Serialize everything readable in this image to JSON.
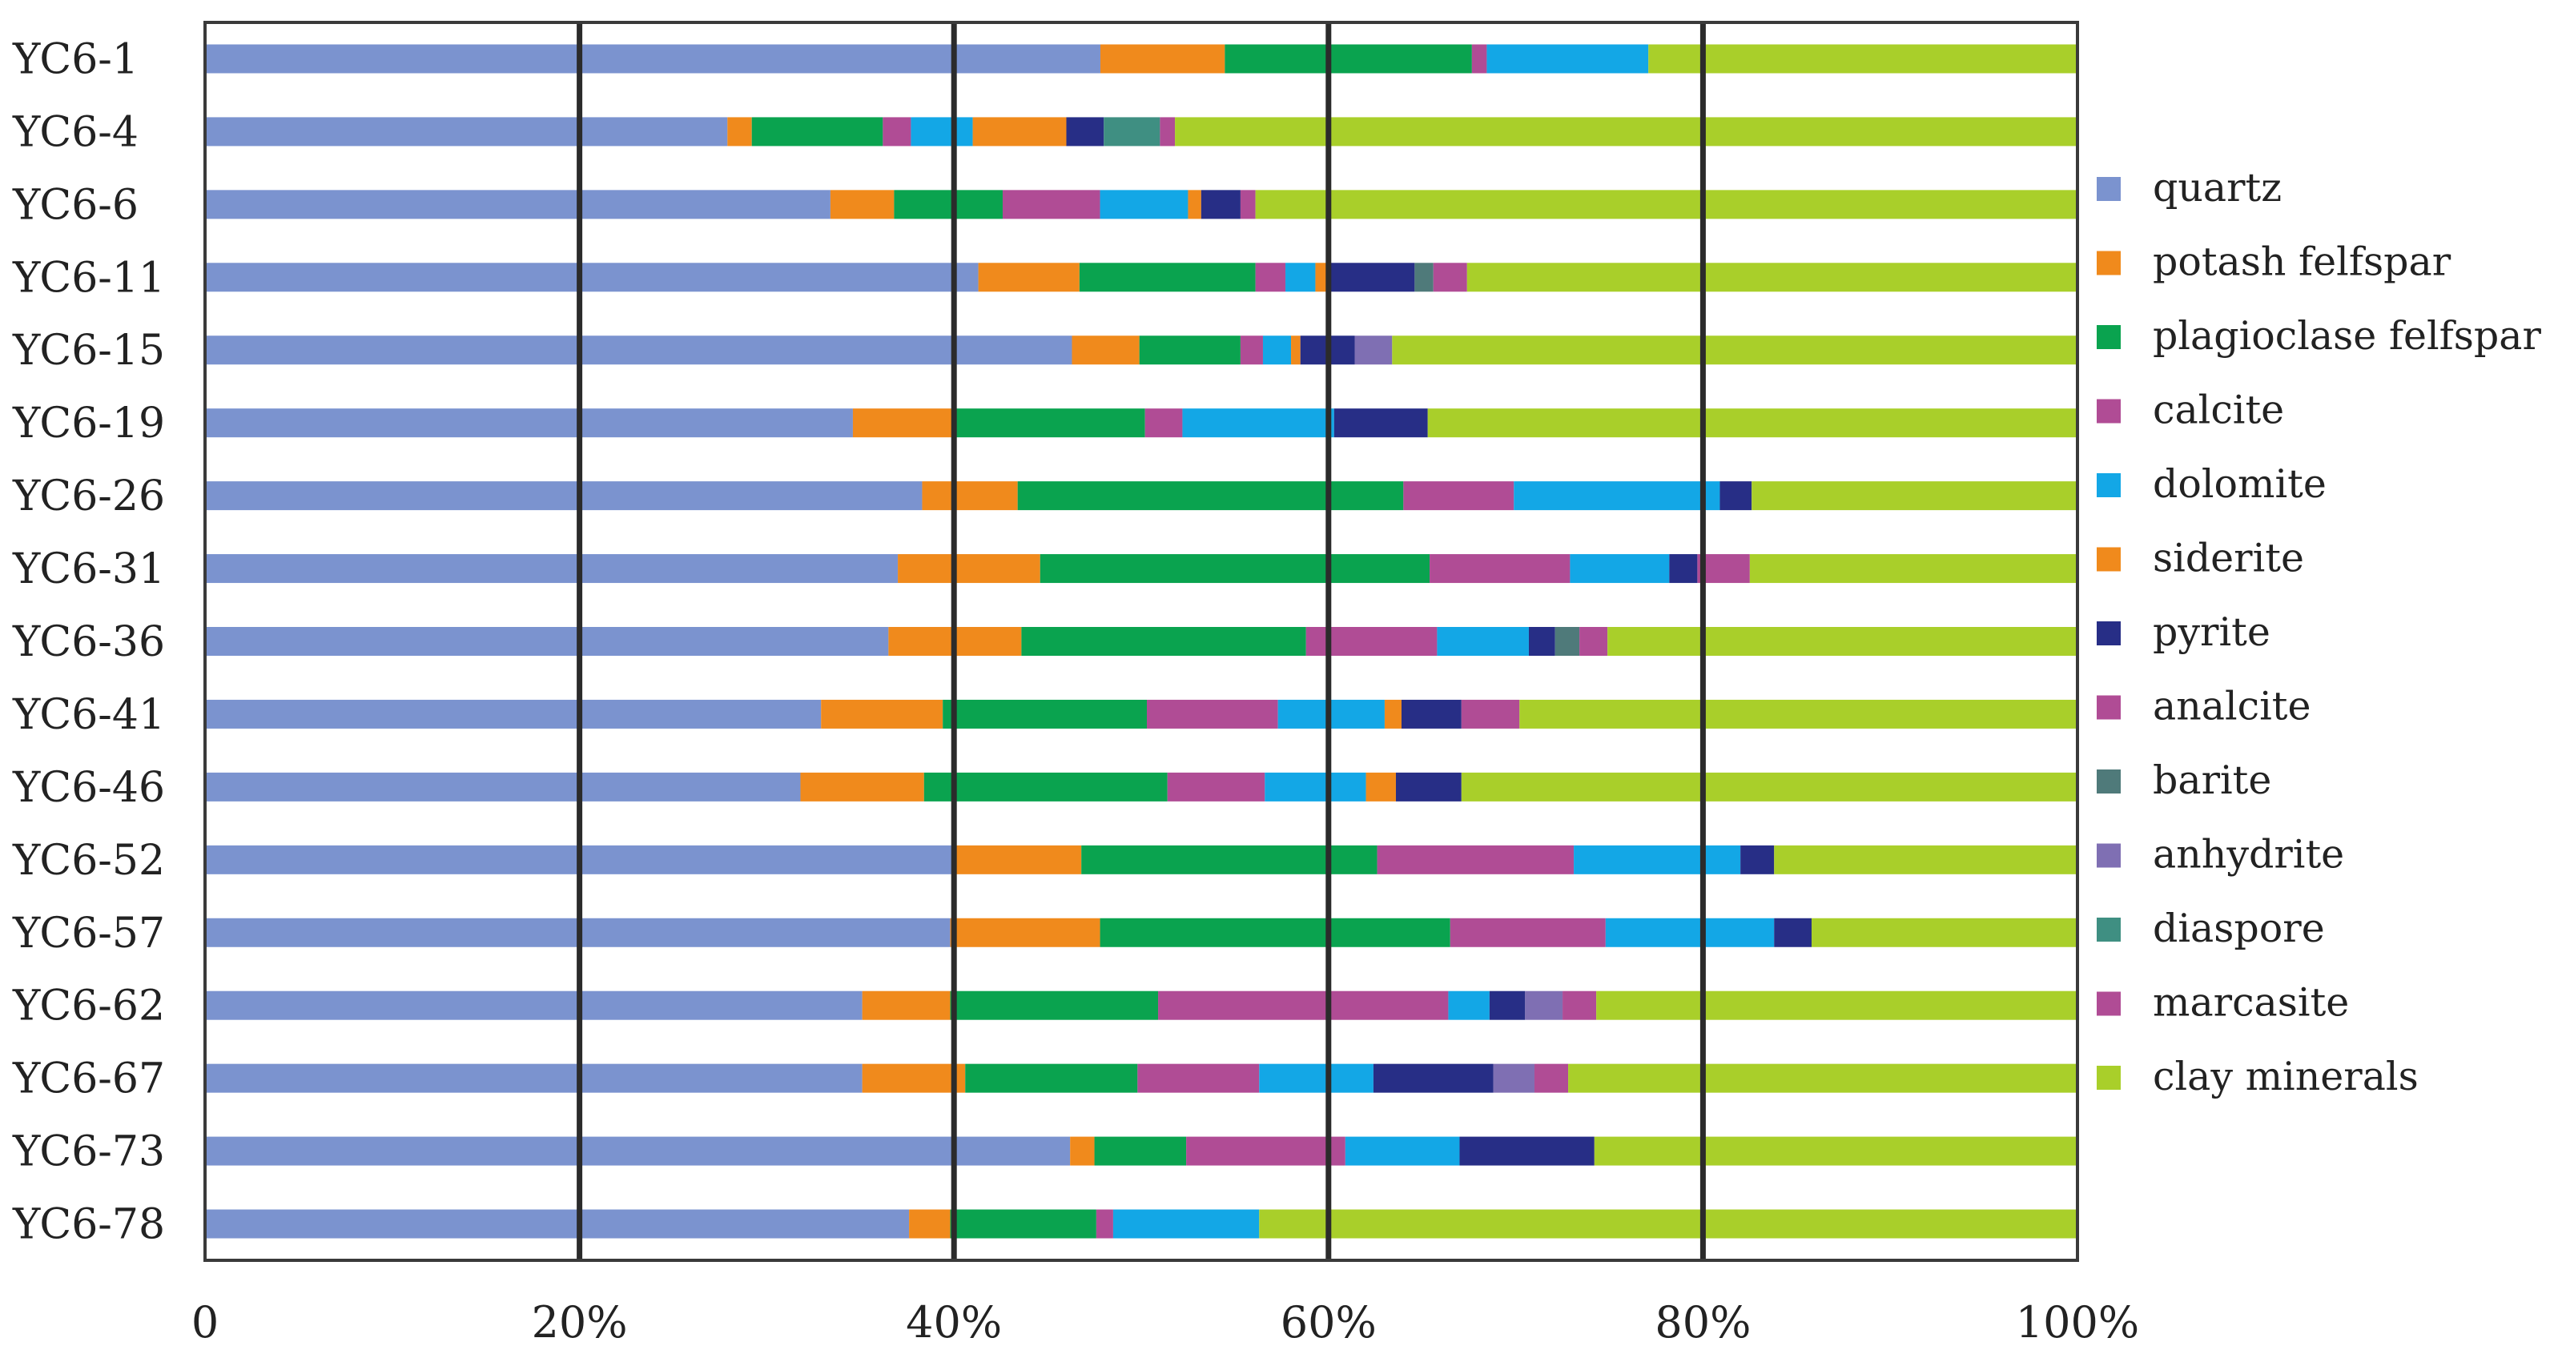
{
  "chart_data": {
    "type": "bar",
    "orientation": "horizontal",
    "stacking": "percent",
    "title": "",
    "xlabel": "",
    "ylabel": "",
    "xlim": [
      0,
      100
    ],
    "x_ticks": [
      "0",
      "20%",
      "40%",
      "60%",
      "80%",
      "100%"
    ],
    "gridlines": "vertical at 20%, 40%, 60%, 80%",
    "legend_position": "right",
    "categories": [
      "YC6-1",
      "YC6-4",
      "YC6-6",
      "YC6-11",
      "YC6-15",
      "YC6-19",
      "YC6-26",
      "YC6-31",
      "YC6-36",
      "YC6-41",
      "YC6-46",
      "YC6-52",
      "YC6-57",
      "YC6-62",
      "YC6-67",
      "YC6-73",
      "YC6-78"
    ],
    "series": [
      {
        "name": "quartz",
        "color": "#7b93cf",
        "values": [
          48.2,
          27.9,
          33.4,
          41.3,
          46.3,
          34.6,
          38.3,
          37.0,
          36.5,
          32.9,
          31.8,
          39.9,
          39.8,
          35.1,
          35.1,
          46.2,
          37.6
        ]
      },
      {
        "name": "potash felfspar",
        "color": "#f08a1c",
        "values": [
          6.7,
          1.3,
          3.4,
          5.4,
          3.6,
          5.3,
          5.1,
          7.6,
          7.1,
          6.5,
          6.6,
          6.9,
          8.0,
          4.7,
          5.5,
          1.3,
          2.2
        ]
      },
      {
        "name": "plagioclase felfspar",
        "color": "#0aa34f",
        "values": [
          13.3,
          7.0,
          5.8,
          9.4,
          5.4,
          10.3,
          20.6,
          20.8,
          15.2,
          10.9,
          13.0,
          15.8,
          18.7,
          11.1,
          9.2,
          4.9,
          7.8
        ]
      },
      {
        "name": "calcite",
        "color": "#b04c95",
        "values": [
          0.8,
          1.5,
          5.2,
          1.6,
          1.2,
          2.0,
          5.9,
          7.5,
          7.0,
          7.0,
          5.2,
          10.5,
          8.3,
          15.5,
          6.5,
          8.5,
          0.9
        ]
      },
      {
        "name": "dolomite",
        "color": "#13a7e6",
        "values": [
          8.7,
          3.3,
          4.7,
          1.6,
          1.5,
          8.1,
          11.0,
          5.3,
          4.9,
          5.7,
          5.4,
          8.9,
          9.0,
          2.2,
          6.1,
          6.1,
          7.8
        ]
      },
      {
        "name": "siderite",
        "color": "#f08a1c",
        "values": [
          0,
          5.0,
          0.7,
          0.6,
          0.5,
          0,
          0,
          0,
          0,
          0.9,
          1.6,
          0,
          0,
          0,
          0,
          0,
          0
        ]
      },
      {
        "name": "pyrite",
        "color": "#272e86",
        "values": [
          0,
          2.0,
          2.1,
          4.7,
          2.9,
          5.0,
          1.7,
          1.5,
          1.4,
          3.2,
          3.5,
          1.8,
          2.0,
          1.9,
          6.4,
          7.2,
          0
        ]
      },
      {
        "name": "analcite",
        "color": "#b04c95",
        "values": [
          0,
          0,
          0,
          0,
          0,
          0,
          0,
          0,
          0,
          0,
          0,
          0,
          0,
          0,
          0,
          0,
          0
        ]
      },
      {
        "name": "barite",
        "color": "#4f7a7a",
        "values": [
          0,
          0,
          0,
          1.0,
          0,
          0,
          0,
          0,
          1.3,
          0,
          0,
          0,
          0,
          0,
          0,
          0,
          0
        ]
      },
      {
        "name": "anhydrite",
        "color": "#7f6fb3",
        "values": [
          0,
          0,
          0,
          0,
          2.0,
          0,
          0,
          0,
          0,
          0,
          0,
          0,
          0,
          2.0,
          2.2,
          0,
          0
        ]
      },
      {
        "name": "diaspore",
        "color": "#3f8f82",
        "values": [
          0,
          3.0,
          0,
          0,
          0,
          0,
          0,
          0,
          0,
          0,
          0,
          0,
          0,
          0,
          0,
          0,
          0
        ]
      },
      {
        "name": "marcasite",
        "color": "#b04c95",
        "values": [
          0,
          0.8,
          0.8,
          1.8,
          0,
          0,
          0,
          2.8,
          1.5,
          3.1,
          0,
          0,
          0,
          1.8,
          1.8,
          0,
          0
        ]
      },
      {
        "name": "clay minerals",
        "color": "#a9cf2a",
        "values": [
          23.1,
          48.2,
          43.9,
          32.6,
          36.6,
          34.7,
          17.4,
          17.5,
          25.1,
          29.8,
          32.9,
          16.2,
          14.2,
          25.7,
          27.2,
          25.8,
          43.7
        ]
      }
    ]
  }
}
